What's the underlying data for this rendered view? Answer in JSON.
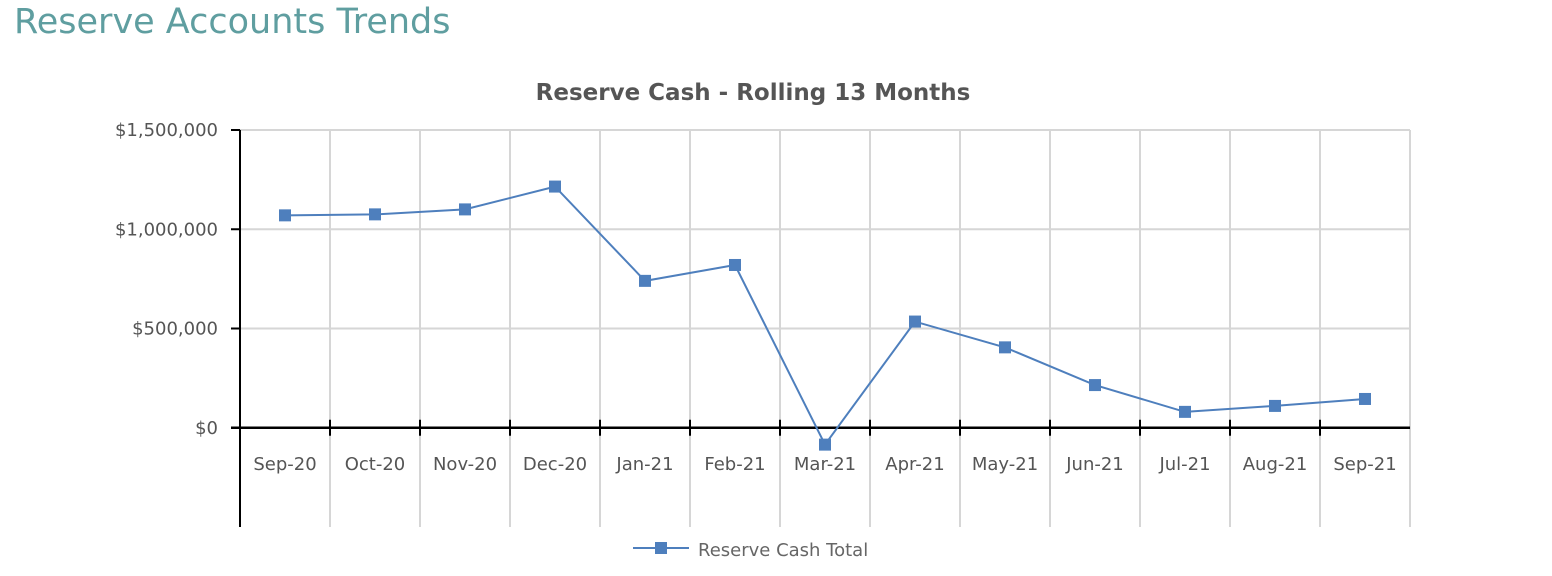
{
  "page": {
    "heading": "Reserve Accounts Trends"
  },
  "colors": {
    "series": "#4e7fbd",
    "heading": "#5f9ea0",
    "grid": "#d6d6d6",
    "axis": "#000000"
  },
  "chart_data": {
    "type": "line",
    "title": "Reserve Cash - Rolling 13 Months",
    "xlabel": "",
    "ylabel": "",
    "categories": [
      "Sep-20",
      "Oct-20",
      "Nov-20",
      "Dec-20",
      "Jan-21",
      "Feb-21",
      "Mar-21",
      "Apr-21",
      "May-21",
      "Jun-21",
      "Jul-21",
      "Aug-21",
      "Sep-21"
    ],
    "series": [
      {
        "name": "Reserve Cash Total",
        "marker": "square",
        "values": [
          1070000,
          1075000,
          1100000,
          1215000,
          740000,
          820000,
          -85000,
          535000,
          405000,
          215000,
          80000,
          110000,
          145000
        ]
      }
    ],
    "ylim": [
      -500000,
      1500000
    ],
    "yticks": [
      0,
      500000,
      1000000,
      1500000
    ],
    "ytick_labels": [
      "$0",
      "$500,000",
      "$1,000,000",
      "$1,500,000"
    ],
    "grid": true,
    "legend": "bottom"
  }
}
